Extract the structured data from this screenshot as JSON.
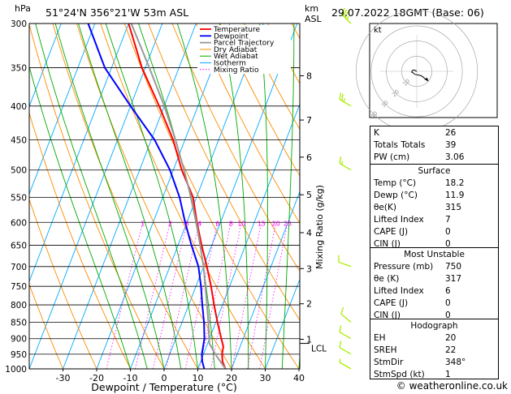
{
  "header": {
    "hpa_label": "hPa",
    "location": "51°24'N  356°21'W  53m  ASL",
    "km_label": "km",
    "asl_label": "ASL",
    "datetime": "29.07.2022  18GMT  (Base: 06)"
  },
  "chart_data": {
    "type": "line",
    "title": "",
    "xlabel": "Dewpoint / Temperature (°C)",
    "ylabel": "hPa",
    "right_ylabel": "Mixing Ratio (g/kg)",
    "xlim": [
      -40,
      40
    ],
    "ylim": [
      1000,
      300
    ],
    "pressure_ticks": [
      300,
      350,
      400,
      450,
      500,
      550,
      600,
      650,
      700,
      750,
      800,
      850,
      900,
      950,
      1000
    ],
    "x_ticks": [
      -30,
      -20,
      -10,
      0,
      10,
      20,
      30,
      40
    ],
    "km_ticks": [
      {
        "label": "8",
        "p": 360
      },
      {
        "label": "7",
        "p": 420
      },
      {
        "label": "6",
        "p": 478
      },
      {
        "label": "5",
        "p": 545
      },
      {
        "label": "4",
        "p": 622
      },
      {
        "label": "3",
        "p": 705
      },
      {
        "label": "2",
        "p": 797
      },
      {
        "label": "1",
        "p": 902
      }
    ],
    "lcl_label": "LCL",
    "lcl_p": 915,
    "mixing_ratio_labels": [
      "1",
      "2",
      "3",
      "4",
      "6",
      "8",
      "10",
      "15",
      "20",
      "25"
    ],
    "mixing_ratio_values": [
      1,
      2,
      3,
      4,
      6,
      8,
      10,
      15,
      20,
      25
    ],
    "legend": [
      "Temperature",
      "Dewpoint",
      "Parcel Trajectory",
      "Dry Adiabat",
      "Wet Adiabat",
      "Isotherm",
      "Mixing Ratio"
    ],
    "series": [
      {
        "name": "Temperature",
        "p": [
          1000,
          975,
          950,
          925,
          900,
          850,
          800,
          750,
          700,
          650,
          600,
          550,
          500,
          450,
          400,
          350,
          300
        ],
        "values": [
          18.2,
          16.5,
          15.5,
          15.0,
          13.5,
          10.5,
          7.5,
          4.5,
          1.0,
          -3.0,
          -7.0,
          -11.0,
          -17.5,
          -23.5,
          -31.5,
          -41.0,
          -50.0
        ]
      },
      {
        "name": "Dewpoint",
        "p": [
          1000,
          975,
          950,
          925,
          900,
          850,
          800,
          750,
          700,
          650,
          600,
          550,
          500,
          450,
          400,
          350,
          300
        ],
        "values": [
          11.9,
          10.5,
          9.5,
          9.0,
          8.5,
          6.5,
          4.0,
          1.5,
          -1.5,
          -6.0,
          -10.5,
          -15.0,
          -21.0,
          -29.0,
          -40.0,
          -52.0,
          -62.0
        ]
      },
      {
        "name": "Parcel Trajectory",
        "p": [
          1000,
          950,
          915,
          900,
          850,
          800,
          750,
          700,
          650,
          600,
          550,
          500,
          450,
          400,
          350,
          300
        ],
        "values": [
          18.2,
          13.5,
          10.5,
          9.9,
          7.8,
          5.4,
          2.8,
          0.0,
          -3.4,
          -7.2,
          -11.6,
          -16.8,
          -22.8,
          -30.0,
          -38.8,
          -49.2
        ]
      }
    ],
    "isotherm_range": [
      -110,
      40
    ],
    "dry_adiabat_thetas": [
      -30,
      -20,
      -10,
      0,
      10,
      20,
      30,
      40,
      50,
      60,
      70,
      80,
      90,
      100,
      110,
      120,
      130,
      140,
      150,
      160,
      170,
      180,
      190,
      200,
      210,
      220,
      230,
      240
    ],
    "wet_adiabat_thetas": [
      -10,
      -5,
      0,
      5,
      10,
      15,
      20,
      25,
      30,
      35,
      40
    ],
    "wind_barbs": [
      {
        "p": 300,
        "dir": 315,
        "speed": 35
      },
      {
        "p": 400,
        "dir": 300,
        "speed": 25
      },
      {
        "p": 500,
        "dir": 300,
        "speed": 15
      },
      {
        "p": 700,
        "dir": 290,
        "speed": 10
      },
      {
        "p": 850,
        "dir": 310,
        "speed": 10
      },
      {
        "p": 900,
        "dir": 300,
        "speed": 10
      },
      {
        "p": 950,
        "dir": 300,
        "speed": 10
      },
      {
        "p": 1000,
        "dir": 300,
        "speed": 5
      }
    ],
    "hodograph": {
      "label": "kt",
      "ring_labels": [
        "10",
        "20",
        "30",
        "40"
      ],
      "u": [
        0,
        -2,
        -4,
        -6,
        -7,
        -5,
        -3,
        2,
        6,
        9,
        11,
        13
      ],
      "v": [
        0,
        1,
        2,
        1,
        -1,
        -2,
        -4,
        -5,
        -6,
        -8,
        -10,
        -12
      ]
    },
    "colors": {
      "temperature": "#ff0000",
      "dewpoint": "#0000ff",
      "parcel": "#999999",
      "dry_adiabat": "#ff8c00",
      "wet_adiabat": "#00aa00",
      "isotherm": "#00aaff",
      "mixing_ratio": "#ff00ff",
      "barb": "#aaee00"
    }
  },
  "indices": {
    "rows": [
      {
        "label": "K",
        "value": "26"
      },
      {
        "label": "Totals Totals",
        "value": "39"
      },
      {
        "label": "PW (cm)",
        "value": "3.06"
      }
    ]
  },
  "surface": {
    "title": "Surface",
    "rows": [
      {
        "label": "Temp (°C)",
        "value": "18.2"
      },
      {
        "label": "Dewp (°C)",
        "value": "11.9"
      },
      {
        "label": "θe(K)",
        "value": "315"
      },
      {
        "label": "Lifted Index",
        "value": "7"
      },
      {
        "label": "CAPE (J)",
        "value": "0"
      },
      {
        "label": "CIN (J)",
        "value": "0"
      }
    ]
  },
  "most_unstable": {
    "title": "Most Unstable",
    "rows": [
      {
        "label": "Pressure (mb)",
        "value": "750"
      },
      {
        "label": "θe (K)",
        "value": "317"
      },
      {
        "label": "Lifted Index",
        "value": "6"
      },
      {
        "label": "CAPE (J)",
        "value": "0"
      },
      {
        "label": "CIN (J)",
        "value": "0"
      }
    ]
  },
  "hodograph_table": {
    "title": "Hodograph",
    "rows": [
      {
        "label": "EH",
        "value": "20"
      },
      {
        "label": "SREH",
        "value": "22"
      },
      {
        "label": "StmDir",
        "value": "348°"
      },
      {
        "label": "StmSpd (kt)",
        "value": "1"
      }
    ]
  },
  "footer": {
    "credit": "© weatheronline.co.uk"
  }
}
